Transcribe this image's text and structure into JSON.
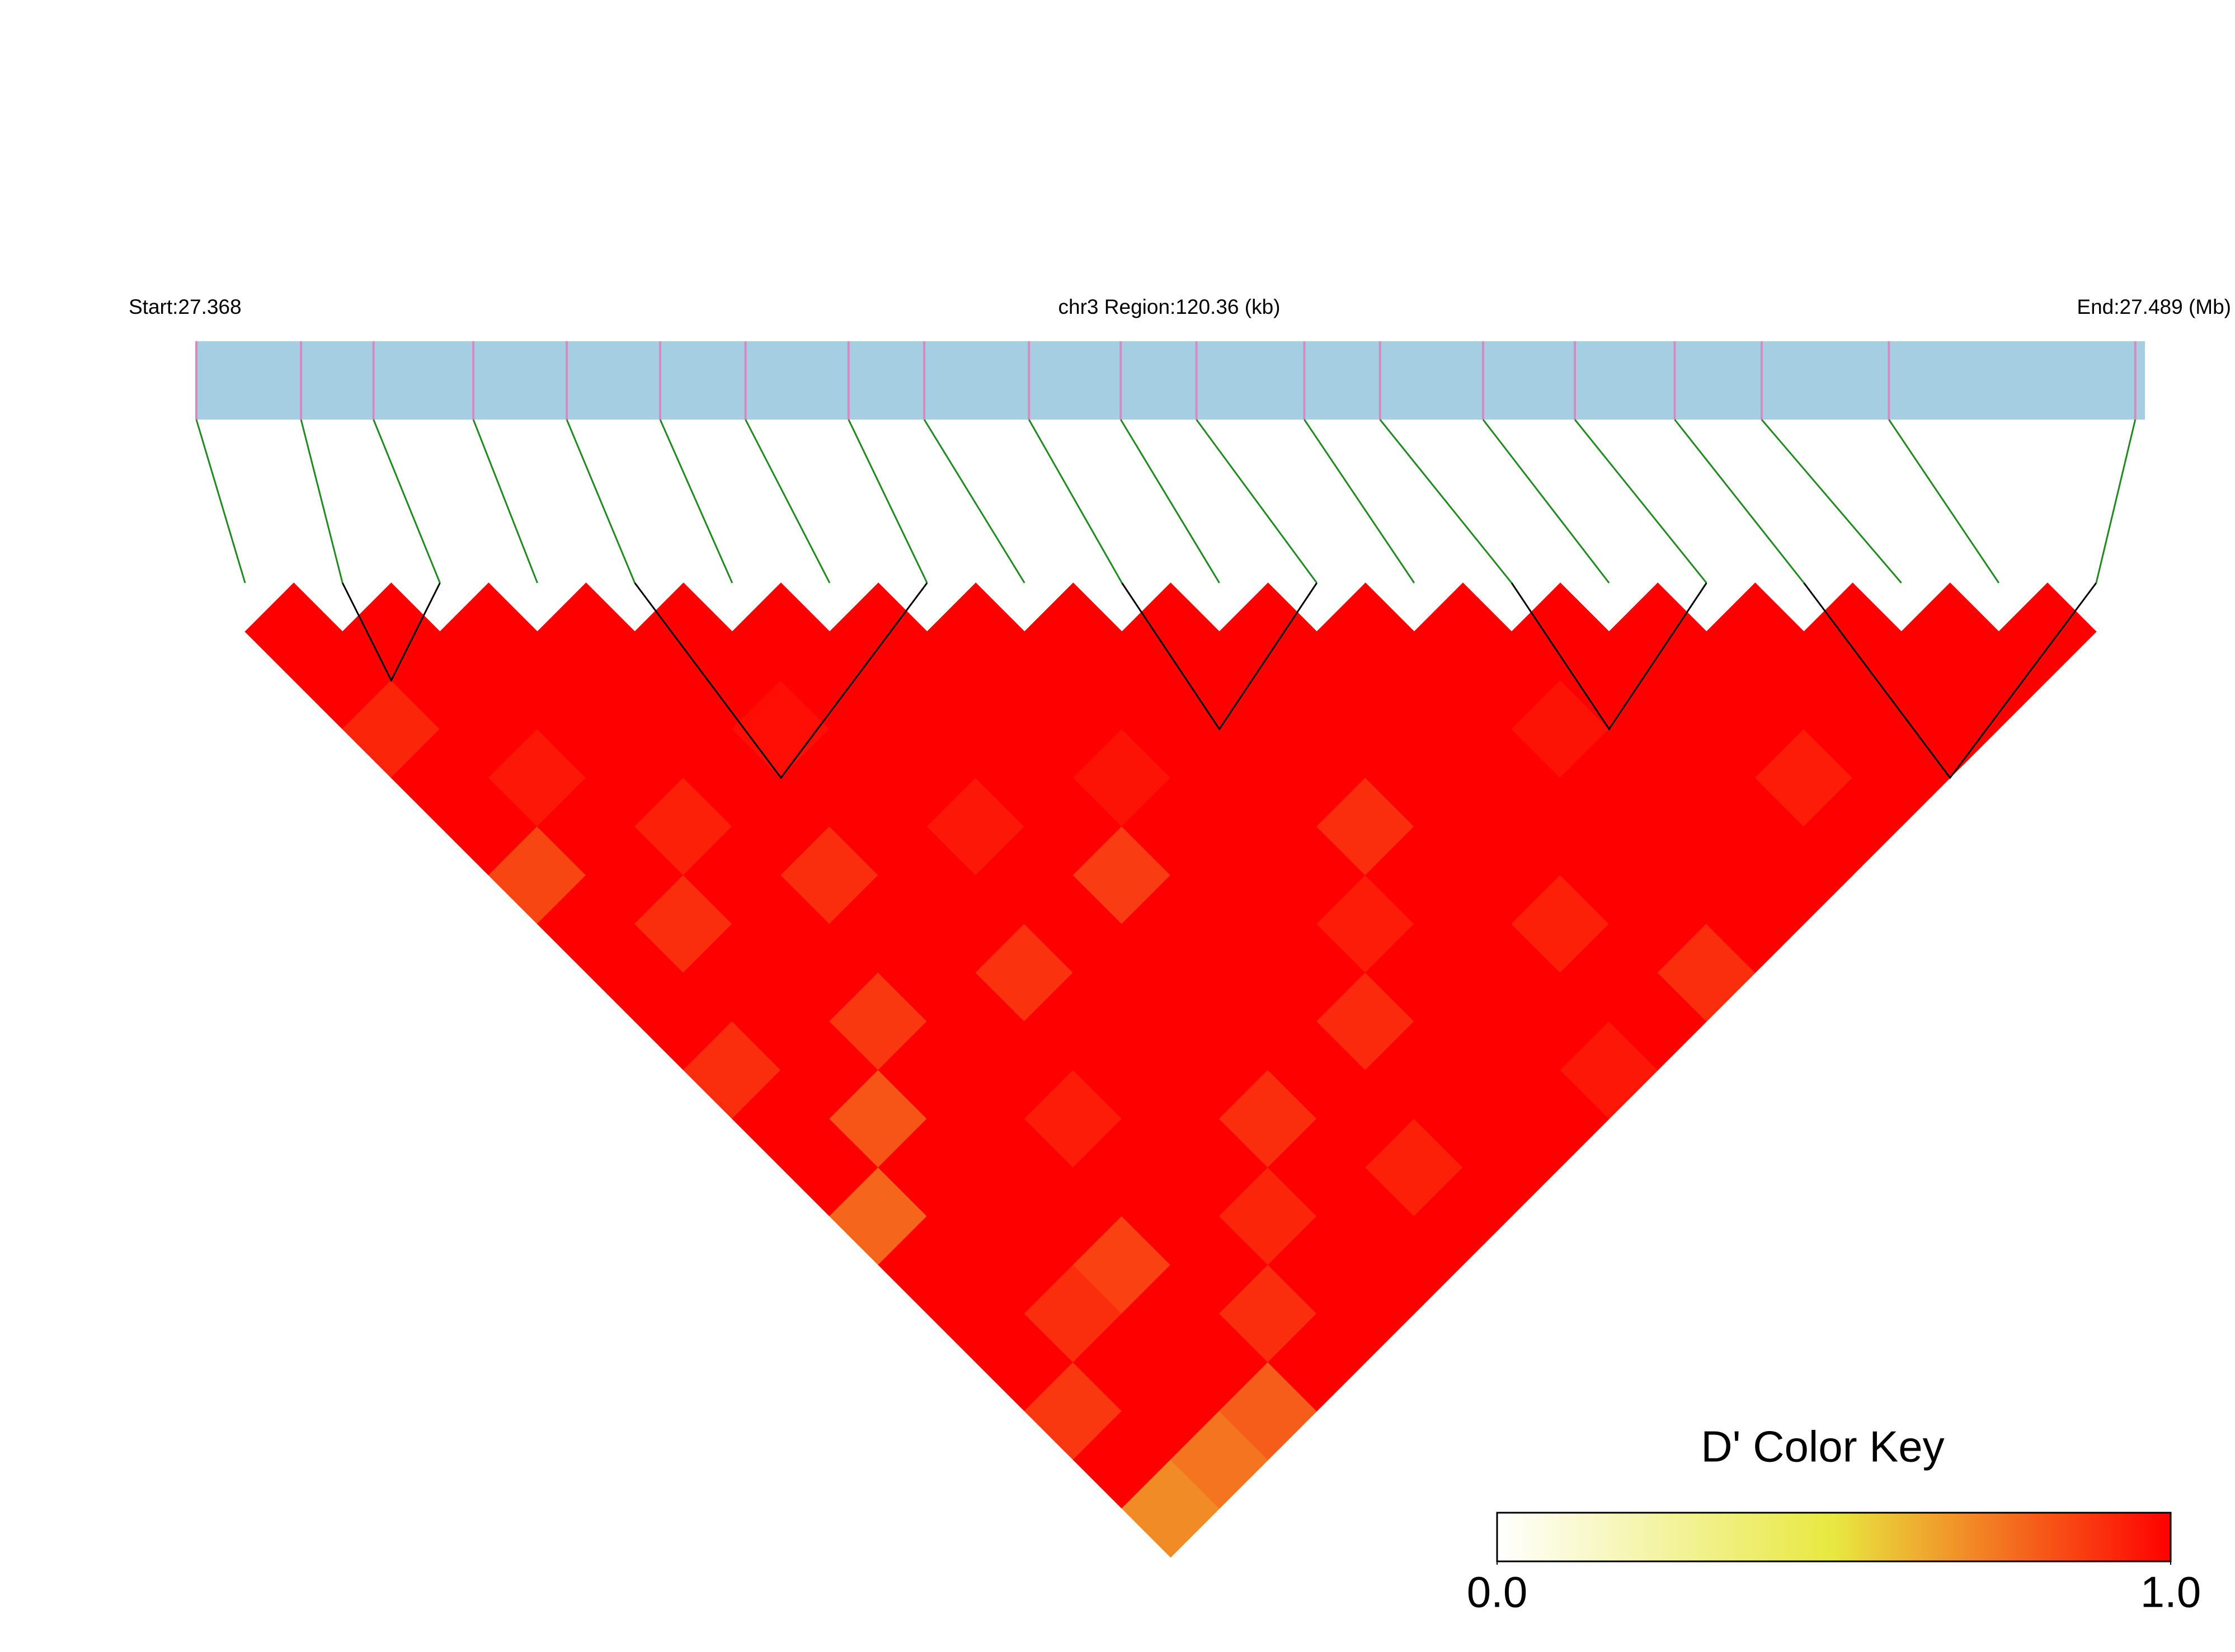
{
  "chart_data": {
    "type": "ld_heatmap",
    "start_label": "Start:27.368",
    "region_label": "chr3 Region:120.36 (kb)",
    "end_label": "End:27.489 (Mb)",
    "xlim": [
      27.368,
      27.489
    ],
    "positions": [
      27.368,
      27.3745,
      27.379,
      27.3852,
      27.391,
      27.3968,
      27.4021,
      27.4085,
      27.4132,
      27.4197,
      27.4254,
      27.4301,
      27.4368,
      27.4415,
      27.4479,
      27.4536,
      27.4598,
      27.4652,
      27.4731,
      27.4884
    ],
    "band_color": "#a6cee3",
    "snp_color": "#d889c0",
    "link_color": "#1f8a1f",
    "block_color": "#000000",
    "dprime": [
      [
        1,
        1,
        0.92,
        1,
        1,
        0.85,
        1,
        1,
        1,
        0.9,
        1,
        1,
        0.78,
        1,
        1,
        1,
        0.88,
        1,
        0.7
      ],
      [
        1,
        1,
        1,
        0.95,
        1,
        1,
        0.9,
        1,
        1,
        1,
        0.82,
        1,
        1,
        1,
        0.9,
        1,
        1,
        0.75
      ],
      [
        1,
        1,
        1,
        1,
        0.93,
        1,
        1,
        1,
        0.88,
        1,
        1,
        1,
        1,
        0.86,
        1,
        1,
        0.8
      ],
      [
        1,
        1,
        1,
        1,
        1,
        0.9,
        1,
        1,
        1,
        1,
        0.94,
        1,
        1,
        1,
        0.9,
        1
      ],
      [
        1,
        1,
        0.97,
        1,
        1,
        1,
        1,
        0.89,
        1,
        1,
        1,
        1,
        0.92,
        1,
        1
      ],
      [
        1,
        1,
        1,
        1,
        0.95,
        1,
        1,
        1,
        1,
        1,
        0.9,
        1,
        1,
        1
      ],
      [
        1,
        1,
        1,
        1,
        1,
        0.87,
        1,
        1,
        1,
        1,
        1,
        0.93,
        1
      ],
      [
        1,
        1,
        1,
        0.96,
        1,
        1,
        1,
        1,
        0.91,
        1,
        1,
        1
      ],
      [
        1,
        1,
        1,
        1,
        1,
        1,
        0.94,
        1,
        1,
        1,
        1
      ],
      [
        1,
        1,
        1,
        1,
        0.9,
        1,
        1,
        1,
        1,
        0.95
      ],
      [
        1,
        1,
        1,
        1,
        1,
        1,
        0.93,
        1,
        1
      ],
      [
        1,
        1,
        1,
        1,
        1,
        1,
        1,
        0.9
      ],
      [
        1,
        1,
        0.96,
        1,
        1,
        1,
        1
      ],
      [
        1,
        1,
        1,
        1,
        1,
        1
      ],
      [
        1,
        1,
        1,
        0.94,
        1
      ],
      [
        1,
        1,
        1,
        1
      ],
      [
        1,
        1,
        1
      ],
      [
        1,
        1
      ],
      [
        1
      ]
    ],
    "blocks": [
      [
        1,
        2
      ],
      [
        4,
        7
      ],
      [
        9,
        11
      ],
      [
        13,
        15
      ],
      [
        16,
        19
      ]
    ],
    "color_key": {
      "title": "D' Color Key",
      "lim": [
        0,
        1
      ],
      "ticks": [
        {
          "value": 0,
          "label": "0.0"
        },
        {
          "value": 1,
          "label": "1.0"
        }
      ],
      "colors": [
        "#ffffff",
        "#e8e840",
        "#ff0000"
      ]
    }
  }
}
